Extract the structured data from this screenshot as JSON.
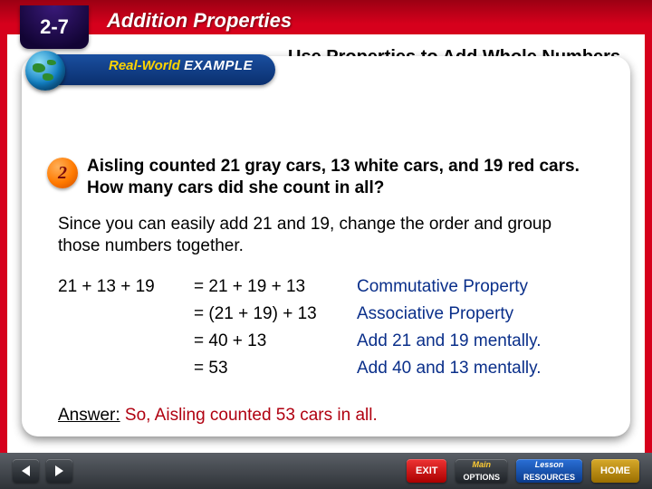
{
  "colors": {
    "frame": "#d6001c",
    "ribbon_grad": [
      "#1a4fa0",
      "#0a2f6e"
    ],
    "ribbon_yellow": "#ffd400",
    "badge_grad": [
      "#ffb05a",
      "#ff7a00",
      "#cc4a00"
    ],
    "step_reason": "#0a2f8a",
    "answer_text": "#b00010",
    "nav_grad": [
      "#5a5f66",
      "#2f3338"
    ]
  },
  "lesson": {
    "number": "2-7",
    "title": "Addition Properties"
  },
  "ribbon": {
    "prefix": "Real-World",
    "suffix": "EXAMPLE"
  },
  "heading": "Use Properties to Add Whole Numbers",
  "badge_number": "2",
  "problem": "Aisling counted 21 gray cars, 13 white cars, and 19 red cars. How many cars did she count in all?",
  "explanation": "Since you can easily add 21 and 19, change the order and group those numbers together.",
  "work": {
    "lhs_first": "21 + 13 + 19",
    "steps": [
      {
        "expr": "= 21 + 19 + 13",
        "reason": "Commutative Property"
      },
      {
        "expr": "= (21 + 19) + 13",
        "reason": "Associative Property"
      },
      {
        "expr": "= 40 + 13",
        "reason": "Add 21 and 19 mentally."
      },
      {
        "expr": "= 53",
        "reason": "Add 40 and 13 mentally."
      }
    ]
  },
  "answer": {
    "label": "Answer:",
    "text": " So, Aisling counted 53 cars in all."
  },
  "nav": {
    "exit": "EXIT",
    "main": {
      "top": "Main",
      "bottom": "OPTIONS"
    },
    "lesson": {
      "top": "Lesson",
      "bottom": "RESOURCES"
    },
    "home": "HOME"
  }
}
